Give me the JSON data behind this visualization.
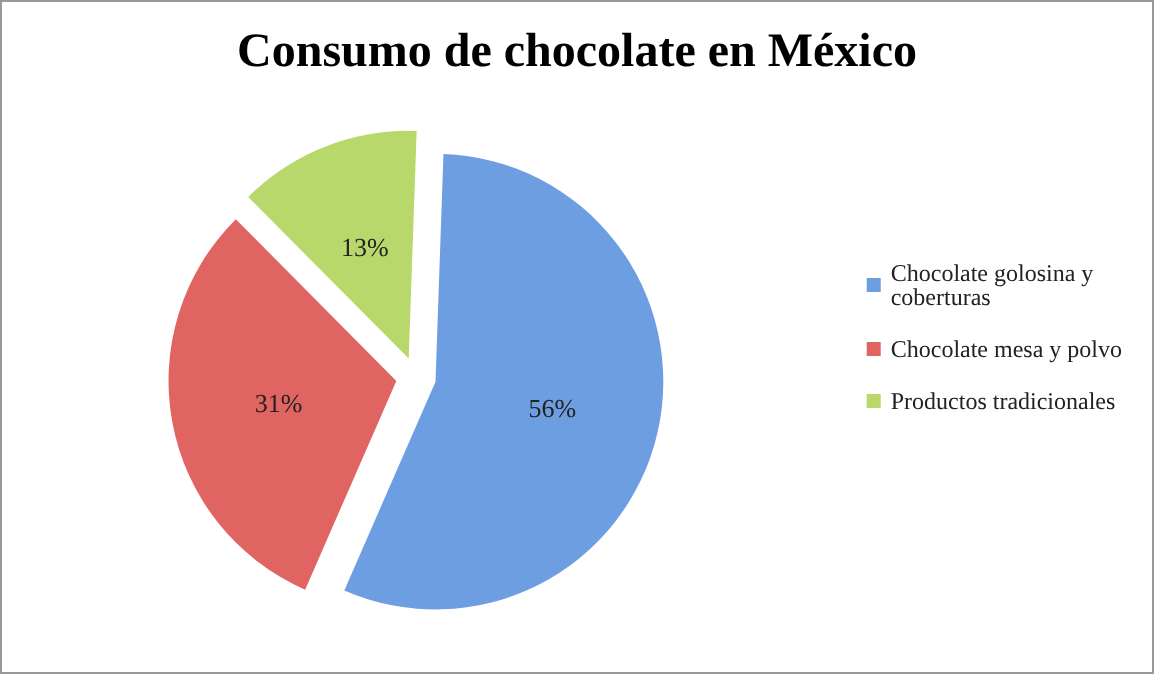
{
  "chart_data": {
    "type": "pie",
    "title": "Consumo de chocolate en México",
    "categories": [
      "Chocolate golosina y coberturas",
      "Chocolate mesa y polvo",
      "Productos tradicionales"
    ],
    "values": [
      56,
      31,
      13
    ],
    "value_labels": [
      "56%",
      "31%",
      "13%"
    ],
    "colors": [
      "#6e9ee2",
      "#e06462",
      "#b8d86c"
    ],
    "legend": "right"
  }
}
